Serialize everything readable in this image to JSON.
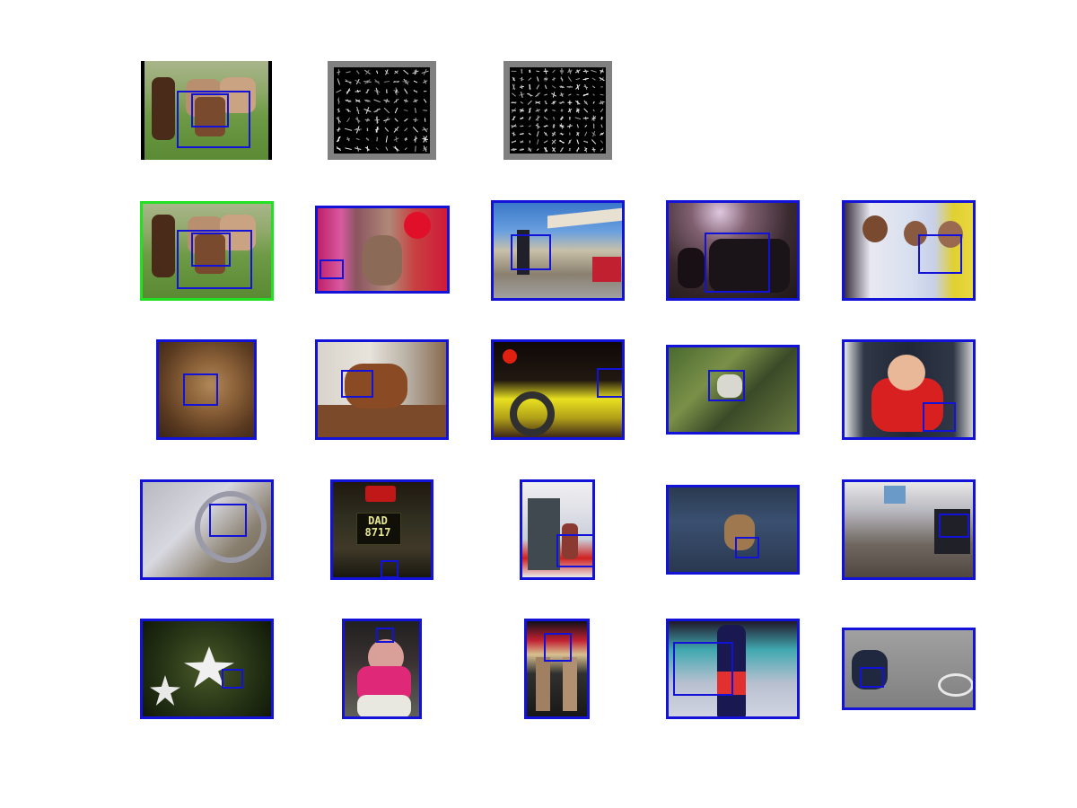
{
  "colors": {
    "frame": "#1212d8",
    "query_frame": "#22e022",
    "hog_bg": "#808080"
  },
  "template_row": {
    "query_image": {
      "icon": "horses-photo"
    },
    "hog_templates": [
      {
        "icon": "hog-template-root"
      },
      {
        "icon": "hog-template-parts"
      }
    ]
  },
  "results": [
    {
      "icon": "horses-photo",
      "match": "top"
    },
    {
      "icon": "cat-ornament-photo"
    },
    {
      "icon": "boat-deck-photo"
    },
    {
      "icon": "group-of-friends-photo"
    },
    {
      "icon": "three-men-photo"
    },
    {
      "icon": "kitten-photo"
    },
    {
      "icon": "dachshund-photo"
    },
    {
      "icon": "motorbike-photo"
    },
    {
      "icon": "small-dog-grass-photo"
    },
    {
      "icon": "child-in-car-seat-photo"
    },
    {
      "icon": "bicycle-chainring-photo"
    },
    {
      "icon": "motorbike-plate-photo",
      "plate_text": "DAD\n8717"
    },
    {
      "icon": "bus-door-photo"
    },
    {
      "icon": "yorkie-photo"
    },
    {
      "icon": "messy-room-photo"
    },
    {
      "icon": "white-lily-photo"
    },
    {
      "icon": "baby-photo"
    },
    {
      "icon": "shop-front-photo"
    },
    {
      "icon": "bottle-on-bed-photo"
    },
    {
      "icon": "motorcycle-racer-photo"
    }
  ]
}
